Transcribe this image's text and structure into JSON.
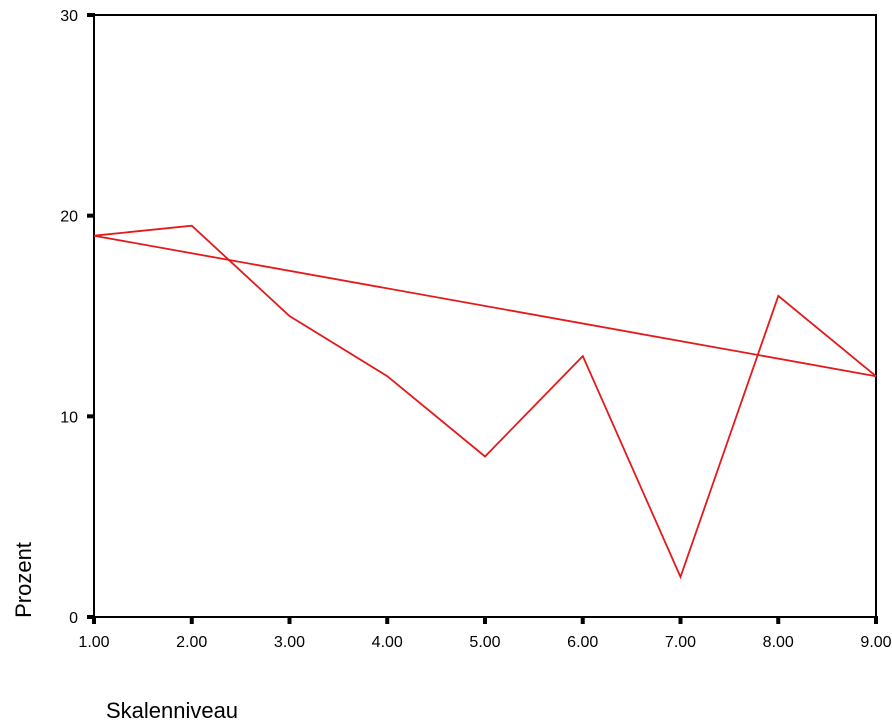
{
  "chart_data": {
    "type": "line",
    "title": "",
    "xlabel": "Skalenniveau",
    "ylabel": "Prozent",
    "x": [
      1,
      2,
      3,
      4,
      5,
      6,
      7,
      8,
      9
    ],
    "x_tick_labels": [
      "1.00",
      "2.00",
      "3.00",
      "4.00",
      "5.00",
      "6.00",
      "7.00",
      "8.00",
      "9.00"
    ],
    "y_tick_labels": [
      "0",
      "10",
      "20",
      "30"
    ],
    "y_ticks": [
      0,
      10,
      20,
      30
    ],
    "xlim": [
      1,
      9
    ],
    "ylim": [
      0,
      30
    ],
    "grid": false,
    "series": [
      {
        "values": [
          19,
          19.5,
          15,
          12,
          8,
          13,
          2,
          16,
          12
        ],
        "color": "#e31a1c"
      },
      {
        "values": [
          19,
          12
        ],
        "x": [
          1,
          9
        ],
        "color": "#e31a1c"
      }
    ]
  }
}
